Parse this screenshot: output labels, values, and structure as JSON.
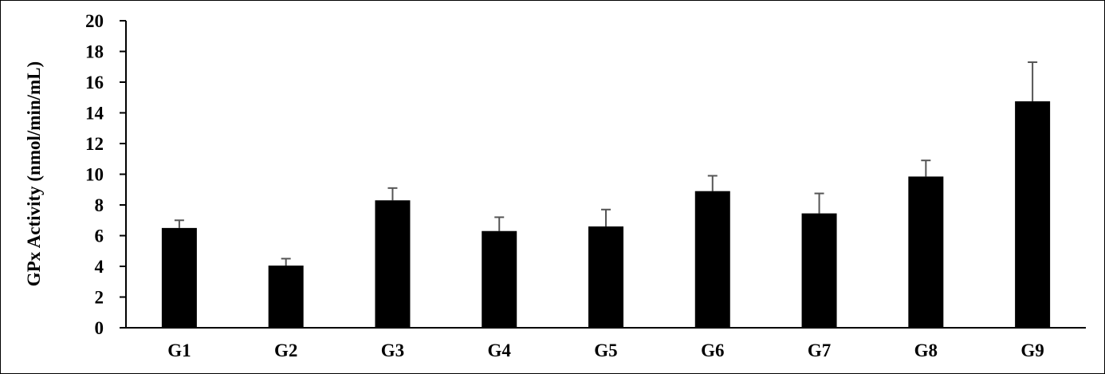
{
  "chart_data": {
    "type": "bar",
    "title": "",
    "xlabel": "",
    "ylabel": "GPx Activity (nmol/min/mL)",
    "ylim": [
      0,
      20
    ],
    "yticks": [
      0,
      2,
      4,
      6,
      8,
      10,
      12,
      14,
      16,
      18,
      20
    ],
    "grid": false,
    "categories": [
      "G1",
      "G2",
      "G3",
      "G4",
      "G5",
      "G6",
      "G7",
      "G8",
      "G9"
    ],
    "values": [
      6.5,
      4.05,
      8.3,
      6.3,
      6.6,
      8.9,
      7.45,
      9.85,
      14.75
    ],
    "error_upper": [
      0.5,
      0.45,
      0.8,
      0.9,
      1.1,
      1.0,
      1.3,
      1.05,
      2.55
    ],
    "bar_color": "#000000"
  }
}
